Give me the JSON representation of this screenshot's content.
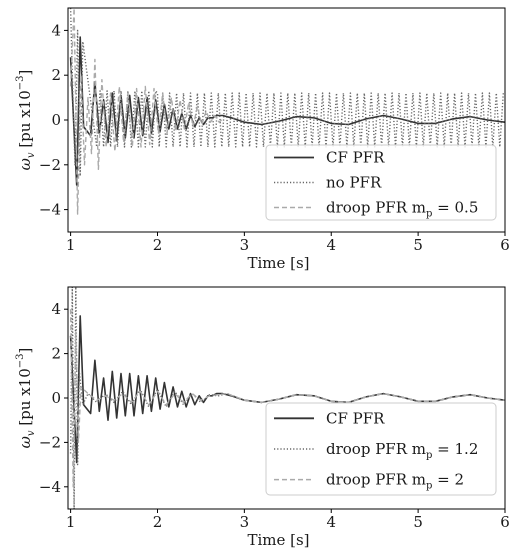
{
  "chart_data": [
    {
      "type": "line",
      "xlabel": "Time [s]",
      "ylabel_main": "ω",
      "ylabel_sub": "v",
      "ylabel_units": " [pu x10",
      "ylabel_exp": "−3",
      "ylabel_close": "]",
      "xlim": [
        0.97,
        6.0
      ],
      "ylim": [
        -5,
        5
      ],
      "xticks": [
        1,
        2,
        3,
        4,
        5,
        6
      ],
      "yticks": [
        -4,
        -2,
        0,
        2,
        4
      ],
      "grid": false,
      "legend_position": "lower-right",
      "series": [
        {
          "name": "CF PFR",
          "style": "solid",
          "color": "#333333",
          "x": [
            1.0,
            1.04,
            1.07,
            1.11,
            1.15,
            1.19,
            1.23,
            1.28,
            1.33,
            1.38,
            1.43,
            1.48,
            1.53,
            1.58,
            1.63,
            1.68,
            1.73,
            1.78,
            1.83,
            1.88,
            1.93,
            1.98,
            2.03,
            2.08,
            2.13,
            2.18,
            2.23,
            2.28,
            2.33,
            2.38,
            2.43,
            2.48,
            2.53,
            2.58,
            2.63,
            2.68,
            2.75,
            2.85,
            3.0,
            3.2,
            3.4,
            3.6,
            3.8,
            4.0,
            4.2,
            4.4,
            4.6,
            4.8,
            5.0,
            5.2,
            5.4,
            5.6,
            5.8,
            6.0
          ],
          "y": [
            2.8,
            -0.5,
            -2.9,
            3.7,
            -0.3,
            -0.5,
            -0.7,
            1.7,
            -0.6,
            0.9,
            -1.0,
            1.2,
            -0.9,
            1.1,
            -0.8,
            1.1,
            -0.8,
            1.0,
            -0.7,
            1.0,
            -0.6,
            0.9,
            -0.5,
            0.7,
            -0.4,
            0.5,
            -0.4,
            0.3,
            -0.4,
            0.2,
            -0.3,
            0.1,
            -0.2,
            0.1,
            0.1,
            0.2,
            0.2,
            0.1,
            -0.1,
            -0.2,
            -0.05,
            0.15,
            0.1,
            -0.15,
            -0.2,
            0.05,
            0.2,
            0.05,
            -0.15,
            -0.15,
            0.05,
            0.15,
            0.0,
            -0.1
          ]
        },
        {
          "name": "no PFR",
          "style": "dotted",
          "color": "#666666",
          "x": [
            1.0,
            1.02,
            1.05,
            1.08,
            1.11,
            1.14,
            1.3,
            1.34,
            1.38,
            1.42,
            1.46,
            1.5,
            1.54,
            1.58,
            1.62,
            1.66,
            1.7,
            1.74,
            1.78,
            1.82,
            1.86,
            1.9,
            1.94,
            1.98,
            2.0,
            2.02,
            2.06,
            2.1,
            2.14,
            2.18,
            2.22,
            2.26,
            2.3,
            2.34,
            2.38,
            2.42,
            2.46,
            2.5,
            2.54,
            2.58,
            2.62,
            2.66,
            2.7,
            2.74,
            2.78,
            2.82,
            2.86,
            2.9,
            2.94,
            2.98,
            3.02,
            3.06,
            3.1,
            3.14,
            3.18,
            3.22,
            3.26,
            3.3,
            3.34,
            3.38,
            3.42,
            3.46,
            3.5,
            3.54,
            3.58,
            3.62,
            3.66,
            3.7,
            3.74,
            3.78,
            3.82,
            3.86,
            3.9,
            3.94,
            3.98,
            4.02,
            4.06,
            4.1,
            4.14,
            4.18,
            4.22,
            4.26,
            4.3,
            4.34,
            4.38,
            4.42,
            4.46,
            4.5,
            4.54,
            4.58,
            4.62,
            4.66,
            4.7,
            4.74,
            4.78,
            4.82,
            4.86,
            4.9,
            4.94,
            4.98,
            5.02,
            5.06,
            5.1,
            5.14,
            5.18,
            5.22,
            5.26,
            5.3,
            5.34,
            5.38,
            5.42,
            5.46,
            5.5,
            5.54,
            5.58,
            5.62,
            5.66,
            5.7,
            5.74,
            5.78,
            5.82,
            5.86,
            5.9,
            5.94,
            5.98
          ],
          "y": [
            5.0,
            2.0,
            -2.0,
            4.0,
            -2.5,
            3.5,
            -1.2,
            1.3,
            -1.2,
            1.3,
            -1.2,
            1.3,
            -1.2,
            1.3,
            -1.2,
            1.3,
            -1.2,
            1.3,
            -1.2,
            1.3,
            -1.2,
            1.3,
            -1.2,
            1.3,
            1.2,
            -1.2,
            1.2,
            -1.2,
            1.2,
            -1.2,
            1.2,
            -1.2,
            1.2,
            -1.2,
            1.2,
            -1.2,
            1.2,
            -1.2,
            1.2,
            -1.2,
            1.2,
            -1.2,
            1.2,
            -1.2,
            1.2,
            -1.2,
            1.2,
            -1.2,
            1.2,
            -1.2,
            1.2,
            -1.2,
            1.2,
            -1.2,
            1.2,
            -1.2,
            1.2,
            -1.2,
            1.2,
            -1.2,
            1.2,
            -1.2,
            1.2,
            -1.2,
            1.2,
            -1.2,
            1.2,
            -1.2,
            1.2,
            -1.2,
            1.2,
            -1.2,
            1.2,
            -1.2,
            1.2,
            -1.2,
            1.2,
            -1.2,
            1.2,
            -1.2,
            1.2,
            -1.2,
            1.2,
            -1.2,
            1.2,
            -1.2,
            1.2,
            -1.2,
            1.2,
            -1.2,
            1.2,
            -1.2,
            1.2,
            -1.2,
            1.2,
            -1.2,
            1.2,
            -1.2,
            1.2,
            -1.2,
            1.2,
            -1.2,
            1.2,
            -1.2,
            1.2,
            -1.2,
            1.2,
            -1.2,
            1.2,
            -1.2,
            1.2,
            -1.2,
            1.2,
            -1.2,
            1.2,
            -1.2,
            1.2,
            -1.2,
            1.2,
            -1.2,
            1.2,
            -1.2,
            1.2,
            -1.2,
            1.2
          ]
        },
        {
          "name": "droop PFR m",
          "name_sub": "p",
          "name_suffix": " = 0.5",
          "style": "dashed",
          "color": "#aaaaaa",
          "x": [
            1.0,
            1.04,
            1.08,
            1.12,
            1.16,
            1.2,
            1.24,
            1.28,
            1.32,
            1.36,
            1.41,
            1.46,
            1.51,
            1.56,
            1.61,
            1.66,
            1.71,
            1.76,
            1.81,
            1.86,
            1.91,
            1.96,
            2.01,
            2.06,
            2.11,
            2.16,
            2.21,
            2.26,
            2.31,
            2.36,
            2.41,
            2.46,
            2.51,
            2.56,
            2.61,
            2.66,
            2.71,
            2.76
          ],
          "y": [
            1.5,
            5.0,
            -4.2,
            2.0,
            -2.0,
            1.0,
            -1.5,
            2.7,
            -2.2,
            1.8,
            -1.2,
            1.2,
            -1.4,
            1.5,
            -1.0,
            1.2,
            -1.2,
            1.4,
            -1.2,
            1.5,
            -1.1,
            1.4,
            -0.6,
            1.2,
            -0.6,
            1.0,
            -0.5,
            0.9,
            -0.4,
            0.8,
            -0.3,
            0.6,
            -0.2,
            0.4,
            -0.1,
            0.2,
            -0.1,
            0.1
          ]
        }
      ]
    },
    {
      "type": "line",
      "xlabel": "Time [s]",
      "ylabel_main": "ω",
      "ylabel_sub": "v",
      "ylabel_units": " [pu x10",
      "ylabel_exp": "−3",
      "ylabel_close": "]",
      "xlim": [
        0.97,
        6.0
      ],
      "ylim": [
        -5,
        5
      ],
      "xticks": [
        1,
        2,
        3,
        4,
        5,
        6
      ],
      "yticks": [
        -4,
        -2,
        0,
        2,
        4
      ],
      "grid": false,
      "legend_position": "lower-right",
      "series": [
        {
          "name": "CF PFR",
          "style": "solid",
          "color": "#333333",
          "x": [
            1.0,
            1.04,
            1.07,
            1.11,
            1.15,
            1.19,
            1.23,
            1.28,
            1.33,
            1.38,
            1.43,
            1.48,
            1.53,
            1.58,
            1.63,
            1.68,
            1.73,
            1.78,
            1.83,
            1.88,
            1.93,
            1.98,
            2.03,
            2.08,
            2.13,
            2.18,
            2.23,
            2.28,
            2.33,
            2.38,
            2.43,
            2.48,
            2.53,
            2.58,
            2.63,
            2.68,
            2.75,
            2.85,
            3.0,
            3.2,
            3.4,
            3.6,
            3.8,
            4.0,
            4.2,
            4.4,
            4.6,
            4.8,
            5.0,
            5.2,
            5.4,
            5.6,
            5.8,
            6.0
          ],
          "y": [
            2.8,
            -0.5,
            -2.9,
            3.7,
            -0.3,
            -0.5,
            -0.7,
            1.7,
            -0.6,
            0.9,
            -1.0,
            1.2,
            -0.9,
            1.1,
            -0.8,
            1.1,
            -0.8,
            1.0,
            -0.7,
            1.0,
            -0.6,
            0.9,
            -0.5,
            0.7,
            -0.4,
            0.5,
            -0.4,
            0.3,
            -0.4,
            0.2,
            -0.3,
            0.1,
            -0.2,
            0.1,
            0.1,
            0.2,
            0.2,
            0.1,
            -0.1,
            -0.2,
            -0.05,
            0.15,
            0.1,
            -0.15,
            -0.2,
            0.05,
            0.2,
            0.05,
            -0.15,
            -0.15,
            0.05,
            0.15,
            0.0,
            -0.1
          ]
        },
        {
          "name": "droop PFR m",
          "name_sub": "p",
          "name_suffix": " = 1.2",
          "style": "dotted",
          "color": "#666666",
          "x": [
            1.0,
            1.02,
            1.04,
            1.06,
            1.08,
            1.1,
            1.14,
            1.2,
            1.3,
            1.4,
            1.5,
            1.6,
            1.7,
            1.8,
            1.9,
            2.0,
            2.1,
            2.2,
            2.3,
            2.4,
            2.5,
            2.6,
            2.7,
            2.8,
            3.0,
            3.2,
            3.4,
            3.6,
            3.8,
            4.0,
            4.2,
            4.4,
            4.6,
            4.8,
            5.0,
            5.2,
            5.4,
            5.6,
            5.8,
            6.0
          ],
          "y": [
            -2.5,
            5.0,
            -5.0,
            5.0,
            -3.0,
            1.2,
            -0.3,
            0.2,
            -0.2,
            0.2,
            -0.2,
            0.3,
            -0.3,
            0.4,
            -0.4,
            0.4,
            -0.4,
            0.3,
            -0.3,
            0.2,
            -0.2,
            0.15,
            0.1,
            0.2,
            -0.1,
            -0.2,
            -0.05,
            0.15,
            0.1,
            -0.15,
            -0.2,
            0.05,
            0.2,
            0.05,
            -0.15,
            -0.15,
            0.05,
            0.15,
            0.0,
            -0.1
          ]
        },
        {
          "name": "droop PFR m",
          "name_sub": "p",
          "name_suffix": " = 2",
          "style": "dashed",
          "color": "#aaaaaa",
          "x": [
            1.0,
            1.03,
            1.06,
            1.09,
            1.12,
            1.2,
            1.3,
            1.4,
            1.5,
            1.6,
            1.7,
            1.8,
            1.9,
            2.0,
            2.1,
            2.2,
            2.3,
            2.4,
            2.5,
            2.6,
            2.7,
            2.8,
            3.0,
            3.2,
            3.4,
            3.6,
            3.8,
            4.0,
            4.2,
            4.4,
            4.6,
            4.8,
            5.0,
            5.2,
            5.4,
            5.6,
            5.8,
            6.0
          ],
          "y": [
            4.0,
            -4.0,
            3.0,
            -2.0,
            0.5,
            0.2,
            -0.1,
            0.1,
            -0.1,
            0.2,
            -0.2,
            0.3,
            -0.3,
            0.3,
            -0.3,
            0.2,
            -0.2,
            0.2,
            -0.1,
            0.1,
            0.15,
            0.2,
            -0.1,
            -0.2,
            -0.05,
            0.15,
            0.1,
            -0.15,
            -0.2,
            0.05,
            0.2,
            0.05,
            -0.15,
            -0.15,
            0.05,
            0.15,
            0.0,
            -0.1
          ]
        }
      ]
    }
  ]
}
